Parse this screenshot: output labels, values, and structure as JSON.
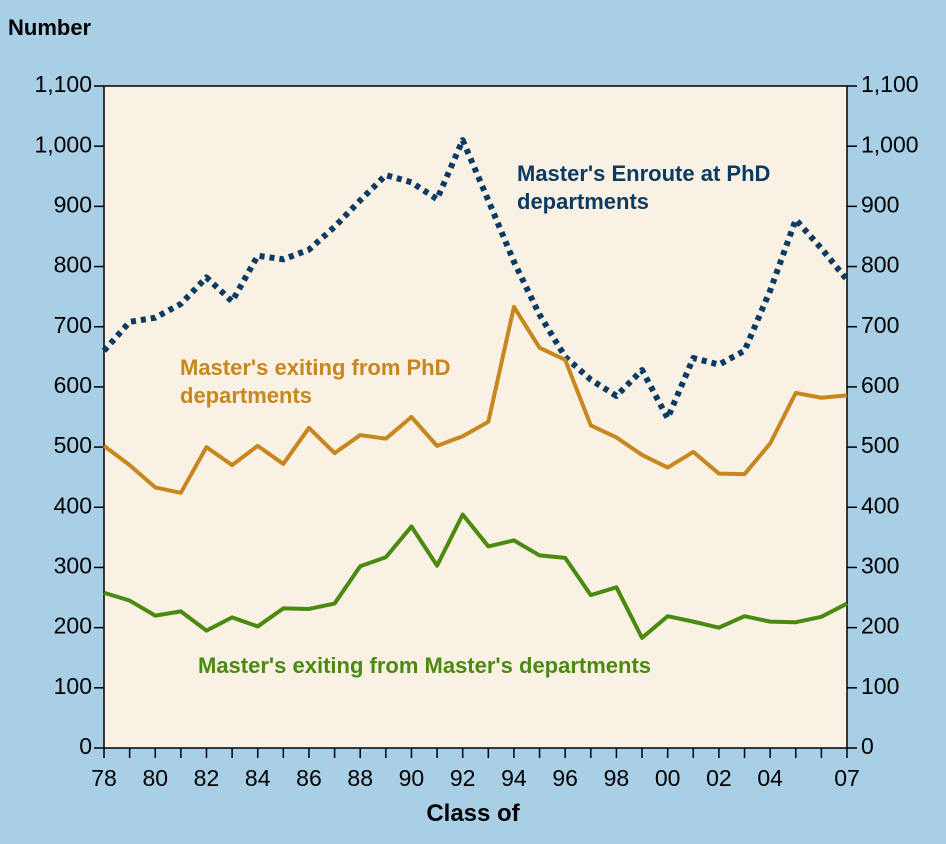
{
  "chart_data": {
    "type": "line",
    "title": "Number",
    "x_label": "Class of",
    "categories": [
      "78",
      null,
      "80",
      null,
      "82",
      null,
      "84",
      null,
      "86",
      null,
      "88",
      null,
      "90",
      null,
      "92",
      null,
      "94",
      null,
      "96",
      null,
      "98",
      null,
      "00",
      null,
      "02",
      null,
      "04",
      null,
      null,
      "07"
    ],
    "series": [
      {
        "name": "Master's Enroute at PhD departments",
        "color": "#0b3a63",
        "dashed": true,
        "values": [
          660,
          708,
          715,
          738,
          782,
          742,
          818,
          812,
          828,
          866,
          910,
          952,
          940,
          912,
          1010,
          910,
          808,
          720,
          650,
          612,
          585,
          628,
          548,
          648,
          637,
          660,
          760,
          878,
          830,
          778
        ]
      },
      {
        "name": "Master's exiting from PhD departments",
        "color": "#c8861e",
        "dashed": false,
        "values": [
          502,
          470,
          433,
          424,
          500,
          470,
          502,
          472,
          532,
          490,
          520,
          514,
          550,
          502,
          518,
          542,
          733,
          665,
          645,
          536,
          516,
          487,
          466,
          492,
          456,
          455,
          506,
          590,
          582,
          586
        ]
      },
      {
        "name": "Master's exiting from Master's departments",
        "color": "#4a8a0f",
        "dashed": false,
        "values": [
          258,
          245,
          220,
          227,
          195,
          217,
          202,
          232,
          231,
          240,
          302,
          317,
          368,
          303,
          388,
          335,
          345,
          320,
          316,
          254,
          267,
          183,
          219,
          210,
          200,
          219,
          210,
          209,
          218,
          240
        ]
      }
    ],
    "ylim": [
      0,
      1100
    ],
    "yticks": [
      0,
      100,
      200,
      300,
      400,
      500,
      600,
      700,
      800,
      900,
      {
        "value": 1000,
        "label": "1,000"
      },
      {
        "value": 1100,
        "label": "1,100"
      }
    ],
    "right_axis": true
  }
}
